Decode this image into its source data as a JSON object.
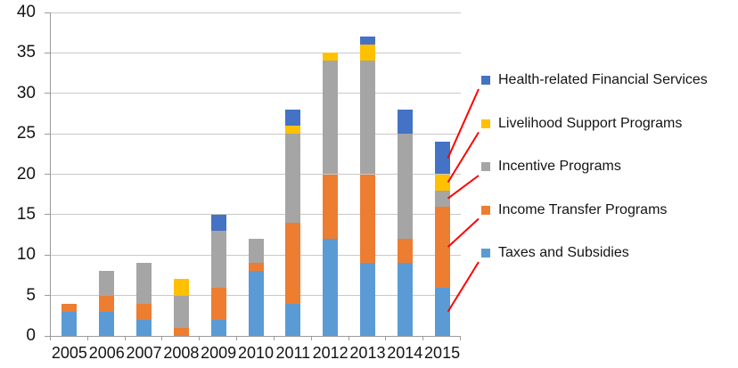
{
  "chart_data": {
    "type": "bar",
    "stacked": true,
    "title": "",
    "xlabel": "",
    "ylabel": "",
    "ylim": [
      0,
      40
    ],
    "ytick_step": 5,
    "grid": true,
    "legend_position": "right",
    "categories": [
      "2005",
      "2006",
      "2007",
      "2008",
      "2009",
      "2010",
      "2011",
      "2012",
      "2013",
      "2014",
      "2015"
    ],
    "series": [
      {
        "name": "Taxes and Subsidies",
        "color": "#5B9BD5",
        "values": [
          3,
          3,
          2,
          0,
          2,
          8,
          4,
          12,
          9,
          9,
          6
        ]
      },
      {
        "name": "Income Transfer Programs",
        "color": "#ED7D31",
        "values": [
          1,
          2,
          2,
          1,
          4,
          1,
          10,
          8,
          11,
          3,
          10
        ]
      },
      {
        "name": "Incentive Programs",
        "color": "#A5A5A5",
        "values": [
          0,
          3,
          5,
          4,
          7,
          3,
          11,
          14,
          14,
          13,
          2
        ]
      },
      {
        "name": "Livelihood Support Programs",
        "color": "#FFC000",
        "values": [
          0,
          0,
          0,
          2,
          0,
          0,
          1,
          1,
          2,
          0,
          2
        ]
      },
      {
        "name": "Health-related Financial Services",
        "color": "#4472C4",
        "values": [
          0,
          0,
          0,
          0,
          2,
          0,
          2,
          0,
          1,
          3,
          4
        ]
      }
    ],
    "totals": [
      4,
      8,
      9,
      7,
      15,
      12,
      28,
      35,
      37,
      28,
      24
    ]
  },
  "axes": {
    "y_ticks": [
      "0",
      "5",
      "10",
      "15",
      "20",
      "25",
      "30",
      "35",
      "40"
    ],
    "x_ticks": [
      "2005",
      "2006",
      "2007",
      "2008",
      "2009",
      "2010",
      "2011",
      "2012",
      "2013",
      "2014",
      "2015"
    ]
  },
  "legend": {
    "callout_color": "#FF0000",
    "items": [
      {
        "label": "Health-related Financial Services",
        "color": "#4472C4"
      },
      {
        "label": "Livelihood Support Programs",
        "color": "#FFC000"
      },
      {
        "label": "Incentive Programs",
        "color": "#A5A5A5"
      },
      {
        "label": "Income Transfer Programs",
        "color": "#ED7D31"
      },
      {
        "label": "Taxes and Subsidies",
        "color": "#5B9BD5"
      }
    ]
  }
}
